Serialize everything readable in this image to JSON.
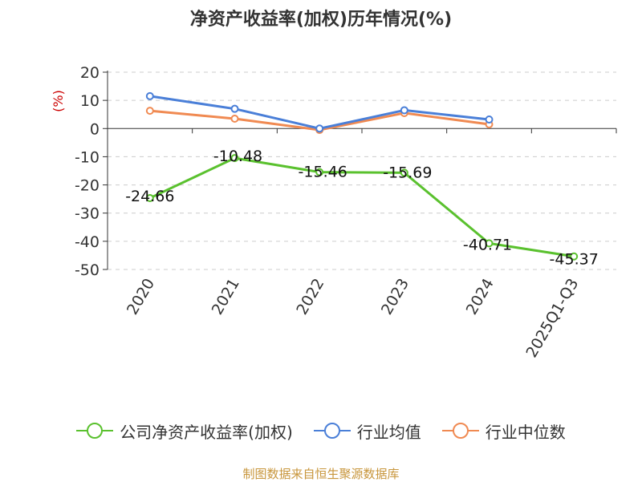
{
  "chart_data": {
    "type": "line",
    "title": "净资产收益率(加权)历年情况(%)",
    "ylabel": "(%)",
    "xlabel": "",
    "categories": [
      "2020",
      "2021",
      "2022",
      "2023",
      "2024",
      "2025Q1-Q3"
    ],
    "ylim": [
      -50,
      20
    ],
    "yticks": [
      20,
      10,
      0,
      -10,
      -20,
      -30,
      -40,
      -50
    ],
    "grid": true,
    "legend_position": "bottom",
    "series": [
      {
        "name": "公司净资产收益率(加权)",
        "color": "#5ac12e",
        "values": [
          -24.66,
          -10.48,
          -15.46,
          -15.69,
          -40.71,
          -45.37
        ],
        "labels": [
          "-24.66",
          "-10.48",
          "-15.46",
          "-15.69",
          "-40.71",
          "-45.37"
        ]
      },
      {
        "name": "行业均值",
        "color": "#4a7fd8",
        "values": [
          11.5,
          7.0,
          0.0,
          6.5,
          3.2,
          null
        ]
      },
      {
        "name": "行业中位数",
        "color": "#f08a52",
        "values": [
          6.3,
          3.5,
          -0.5,
          5.5,
          1.5,
          null
        ]
      }
    ]
  },
  "footer": {
    "source": "制图数据来自恒生聚源数据库"
  }
}
